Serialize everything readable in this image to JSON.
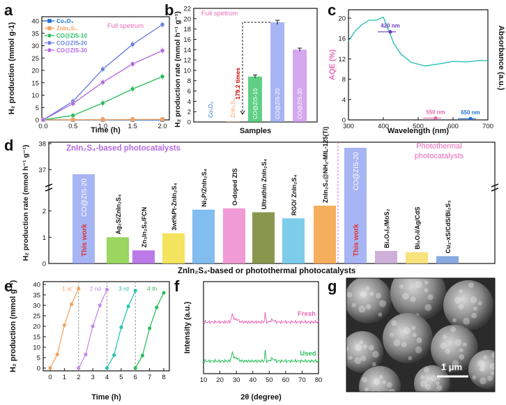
{
  "panels": {
    "a": "a",
    "b": "b",
    "c": "c",
    "d": "d",
    "e": "e",
    "f": "f",
    "g": "g"
  },
  "chart_data": [
    {
      "id": "a",
      "type": "line",
      "title": "Full spetrum",
      "xlabel": "Time (h)",
      "ylabel": "H2 production (mmol g-1)",
      "xlim": [
        0,
        2
      ],
      "ylim": [
        0,
        40
      ],
      "x": [
        0,
        0.5,
        1.0,
        1.5,
        2.0
      ],
      "xticks": [
        0.0,
        0.5,
        1.0,
        1.5,
        2.0
      ],
      "yticks": [
        0,
        5,
        10,
        15,
        20,
        25,
        30,
        35,
        40
      ],
      "legend_position": "top-left",
      "series": [
        {
          "name": "Co3O4",
          "color": "#1f6fd1",
          "values": [
            0,
            0,
            0,
            0,
            0
          ]
        },
        {
          "name": "ZnIn2S4",
          "color": "#f4a261",
          "values": [
            0,
            0.06,
            0.1,
            0.15,
            0.2
          ]
        },
        {
          "name": "CO@ZIS-10",
          "color": "#2bbf5d",
          "values": [
            0,
            1.8,
            6.8,
            12.5,
            17.5
          ]
        },
        {
          "name": "CO@ZIS-20",
          "color": "#6b7fe0",
          "values": [
            0,
            7.5,
            20.5,
            30.5,
            38.5
          ]
        },
        {
          "name": "CO@ZIS-30",
          "color": "#b36ae2",
          "values": [
            0,
            6.6,
            15.2,
            22.6,
            28.0
          ]
        }
      ]
    },
    {
      "id": "b",
      "type": "bar",
      "title": "Full spetrum",
      "xlabel": "Samples",
      "ylabel": "H2 production rate (mmol h-1 g-1)",
      "ylim": [
        0,
        22
      ],
      "yticks": [
        0,
        2,
        4,
        6,
        8,
        10,
        12,
        14,
        16,
        18,
        20,
        22
      ],
      "categories": [
        "Co3O4",
        "ZnIn2S4",
        "CO@ZIS-10",
        "CO@ZIS-20",
        "CO@ZIS-30"
      ],
      "values": [
        0,
        0.1,
        8.8,
        19.3,
        14.0
      ],
      "errors": [
        0,
        0,
        0.3,
        0.4,
        0.3
      ],
      "colors": [
        "#1f6fd1",
        "#f4a261",
        "#2bbf5d",
        "#8a9cf0",
        "#c58ae8"
      ],
      "annotation": "179.2 times"
    },
    {
      "id": "c",
      "type": "line",
      "xlabel": "Wavelength (nm)",
      "ylabel": "AQE (%)",
      "y2label": "Absorbance (a.u.)",
      "xlim": [
        300,
        700
      ],
      "ylim": [
        0,
        20
      ],
      "xticks": [
        300,
        400,
        500,
        600,
        700
      ],
      "yticks": [
        0,
        4,
        8,
        12,
        16,
        20
      ],
      "absorbance": {
        "x": [
          300,
          320,
          340,
          360,
          380,
          400,
          410,
          420,
          430,
          450,
          480,
          520,
          560,
          600,
          640,
          680,
          700
        ],
        "values": [
          15.5,
          17.5,
          18.8,
          19.6,
          19.6,
          20.2,
          18.5,
          16.8,
          15.0,
          13.0,
          11.3,
          10.6,
          11.0,
          11.5,
          11.4,
          11.7,
          11.6
        ]
      },
      "aqe_points": [
        {
          "label": "420 nm",
          "x": 420,
          "y": 17.3,
          "color": "#6a3fc0"
        },
        {
          "label": "550 nm",
          "x": 550,
          "y": 0.35,
          "color": "#e868a8"
        },
        {
          "label": "650 nm",
          "x": 650,
          "y": 0.25,
          "color": "#1f6fd1"
        }
      ]
    },
    {
      "id": "d",
      "type": "bar",
      "group1_title": "ZnIn2S4-based photocatalysts",
      "group2_title": "Photothermal photocatalysts",
      "xlabel": "ZnIn2S4-based or photothermal photocatalysts",
      "ylabel": "H2 production rate (mmol h-1 g-1)",
      "yticks_lower": [
        0,
        1,
        2
      ],
      "yticks_upper": [
        37,
        38
      ],
      "categories": [
        "CO@ZIS-20",
        "Ag2S/ZnIn2S4",
        "Zn3In2S6/FCN",
        "3wt%Pt-ZnIn2S4",
        "Ni2P/ZnIn2S4",
        "O-doped ZIS",
        "Ultrathin ZnIn2S4",
        "RGO/ ZnIn2S4",
        "ZnIn2S4@NH2-MIL-125(Ti)",
        "CO@ZIS-20",
        "Bi4O5I2/MoS2",
        "Bi5O7I/Ag/CdS",
        "Cu2-xS/CdS/Bi2S3"
      ],
      "values": [
        38.0,
        1.0,
        0.5,
        1.15,
        2.05,
        2.1,
        1.95,
        1.72,
        2.2,
        38.0,
        0.48,
        0.43,
        0.28
      ],
      "bar_labels": [
        "This work",
        "",
        "",
        "",
        "",
        "",
        "",
        "",
        "",
        "This work",
        "",
        "",
        ""
      ],
      "colors": [
        "#8a9cf0",
        "#8fd14f",
        "#b56ae6",
        "#f3e04a",
        "#74b6ee",
        "#ee8fd2",
        "#7c8c3a",
        "#6fc8e8",
        "#f4a54a",
        "#8a9cf0",
        "#c8a6d4",
        "#f6df6e",
        "#7aa0dd"
      ]
    },
    {
      "id": "e",
      "type": "line",
      "xlabel": "Time (h)",
      "ylabel": "H2 production (mmol g-1)",
      "xlim": [
        0,
        8
      ],
      "ylim": [
        0,
        40
      ],
      "xticks": [
        0,
        1,
        2,
        3,
        4,
        5,
        6,
        7,
        8
      ],
      "yticks": [
        0,
        5,
        10,
        15,
        20,
        25,
        30,
        35,
        40
      ],
      "series": [
        {
          "name": "1 st",
          "color": "#f4a261",
          "x": [
            0,
            0.5,
            1.0,
            1.5,
            2.0
          ],
          "values": [
            0,
            6.5,
            20.5,
            30.5,
            38.0
          ]
        },
        {
          "name": "2 nd",
          "color": "#c58ae8",
          "x": [
            2,
            2.5,
            3.0,
            3.5,
            4.0
          ],
          "values": [
            0,
            6.5,
            20.0,
            30.0,
            37.5
          ]
        },
        {
          "name": "3 rd",
          "color": "#2bc4b4",
          "x": [
            4,
            4.5,
            5.0,
            5.5,
            6.0
          ],
          "values": [
            0,
            6.2,
            19.5,
            29.5,
            37.0
          ]
        },
        {
          "name": "4 th",
          "color": "#2bbf5d",
          "x": [
            6,
            6.5,
            7.0,
            7.5,
            8.0
          ],
          "values": [
            0,
            6.0,
            19.0,
            29.0,
            36.0
          ]
        }
      ]
    },
    {
      "id": "f",
      "type": "line",
      "xlabel": "2θ (degree)",
      "ylabel": "Intensity (a.u.)",
      "xlim": [
        10,
        80
      ],
      "xticks": [
        10,
        20,
        30,
        40,
        50,
        60,
        70,
        80
      ],
      "series": [
        {
          "name": "Fresh",
          "color": "#e868b8"
        },
        {
          "name": "Used",
          "color": "#2bbf5d"
        }
      ]
    },
    {
      "id": "g",
      "type": "image",
      "scale_bar": "1 μm"
    }
  ]
}
